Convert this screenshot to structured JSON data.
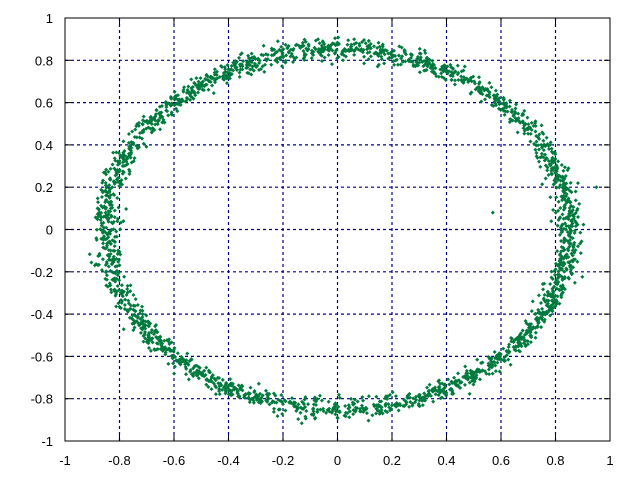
{
  "chart_data": {
    "type": "scatter",
    "title": "",
    "xlabel": "",
    "ylabel": "",
    "xlim": [
      -1,
      1
    ],
    "ylim": [
      -1,
      1
    ],
    "grid": true,
    "legend": "none",
    "xticks": [
      "-1",
      "-0.8",
      "-0.6",
      "-0.4",
      "-0.2",
      "0",
      "0.2",
      "0.4",
      "0.6",
      "0.8",
      "1"
    ],
    "yticks": [
      "-1",
      "-0.8",
      "-0.6",
      "-0.4",
      "-0.2",
      "0",
      "0.2",
      "0.4",
      "0.6",
      "0.8",
      "1"
    ],
    "series": [
      {
        "color": "#007a3d",
        "description_points": "noisy ring of points around an ellipse",
        "center": [
          0.0,
          0.0
        ],
        "radius_x": 0.85,
        "radius_y": 0.85,
        "noise": 0.025,
        "count": 2400,
        "outliers": [
          [
            0.95,
            0.2
          ],
          [
            0.57,
            0.08
          ]
        ]
      }
    ]
  },
  "colors": {
    "grid": "#00008b",
    "axis": "#000000",
    "points": "#007a3d"
  }
}
